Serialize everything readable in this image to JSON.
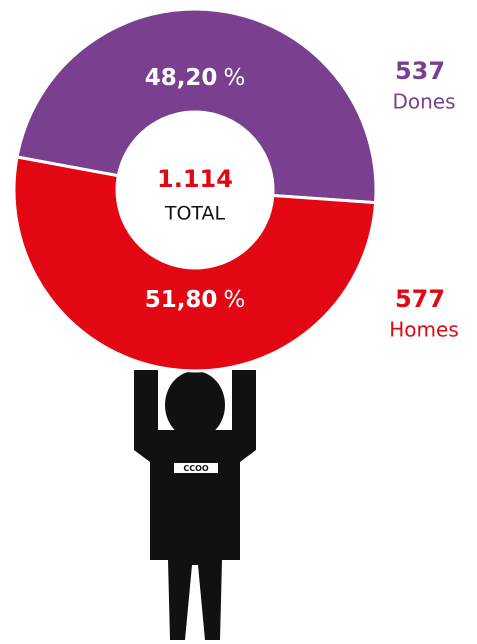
{
  "chart_data": {
    "type": "pie",
    "categories": [
      "Dones",
      "Homes"
    ],
    "values": [
      48.2,
      51.8
    ],
    "value_labels": [
      "48,20",
      "51,80"
    ],
    "percent_sign": "%",
    "counts": [
      537,
      577
    ],
    "colors": [
      "#7b3f8f",
      "#e30613"
    ],
    "total": {
      "value": 1114,
      "label": "1.114"
    },
    "total_label": "TOTAL"
  },
  "logo": "CCOO"
}
